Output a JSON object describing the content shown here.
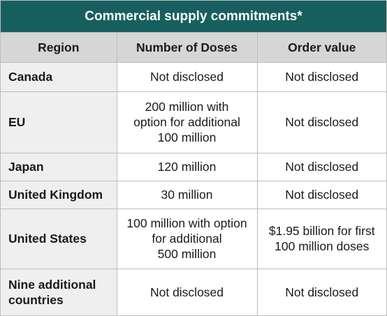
{
  "table": {
    "title": "Commercial supply commitments*",
    "headers": [
      "Region",
      "Number of Doses",
      "Order value"
    ],
    "rows": [
      {
        "region": "Canada",
        "doses": "Not disclosed",
        "value": "Not disclosed"
      },
      {
        "region": "EU",
        "doses": "200 million with\noption for additional\n100 million",
        "value": "Not disclosed"
      },
      {
        "region": "Japan",
        "doses": "120 million",
        "value": "Not disclosed"
      },
      {
        "region": "United Kingdom",
        "doses": "30 million",
        "value": "Not disclosed"
      },
      {
        "region": "United States",
        "doses": "100 million with option\nfor additional\n500 million",
        "value": "$1.95 billion for first\n100 million doses"
      },
      {
        "region": "Nine additional\ncountries",
        "doses": "Not disclosed",
        "value": "Not disclosed"
      }
    ]
  },
  "colors": {
    "title_bg": "#175f5f",
    "header_bg": "#d6d6d6",
    "region_bg": "#efefef",
    "border": "#bdbdbd"
  }
}
